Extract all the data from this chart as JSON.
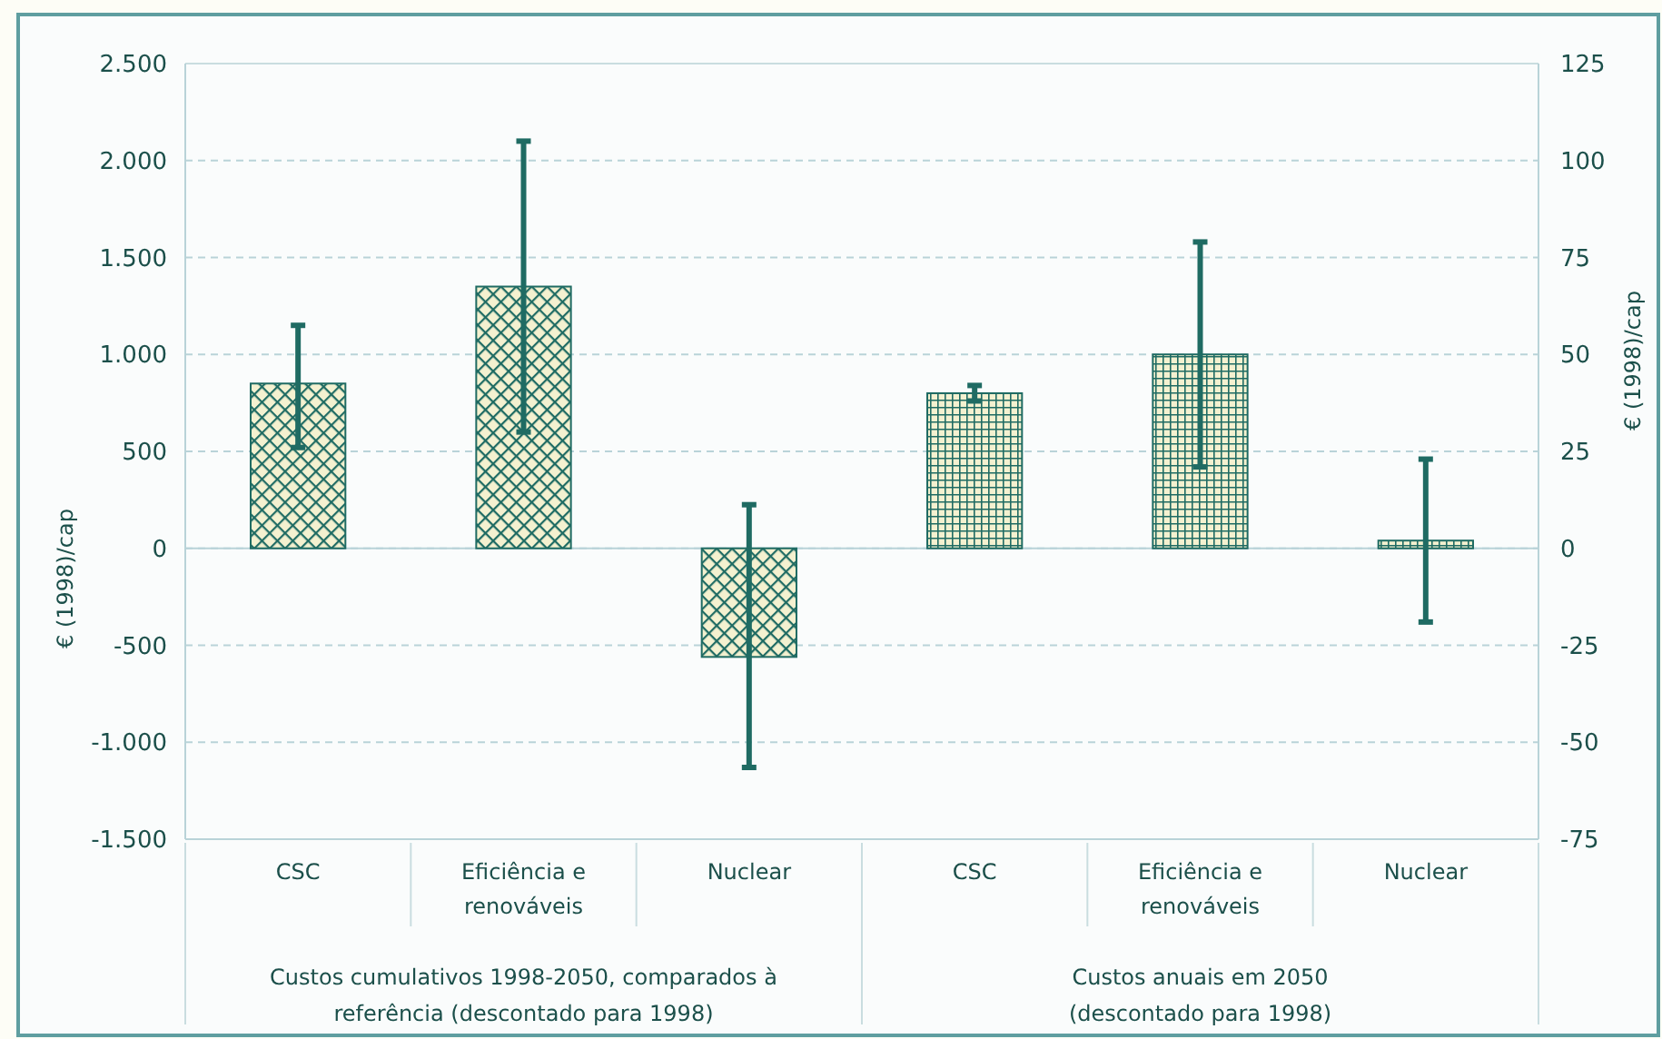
{
  "chart_data": {
    "type": "bar",
    "categories": [
      "CSC",
      "Eficiência e renováveis",
      "Nuclear",
      "CSC",
      "Eficiência e renováveis",
      "Nuclear"
    ],
    "series": [
      {
        "color": "#1f6b63",
        "values": [
          850,
          1350,
          -560,
          null,
          null,
          null
        ],
        "errors": [
          [
            520,
            1150
          ],
          [
            600,
            2100
          ],
          [
            -1130,
            225
          ],
          null,
          null,
          null
        ]
      },
      {
        "color": "#1f6b63",
        "axis": "y2",
        "values": [
          null,
          null,
          null,
          40,
          50,
          2
        ],
        "errors": [
          null,
          null,
          null,
          [
            38,
            42
          ],
          [
            21,
            79
          ],
          [
            -19,
            23
          ]
        ]
      }
    ],
    "ylabel": "€ (1998)/cap",
    "y2label": "€ (1998)/cap",
    "ylim": [
      -1500,
      2500
    ],
    "yticks": [
      {
        "value": -1500,
        "label": "-1.500"
      },
      {
        "value": -1000,
        "label": "-1.000"
      },
      -500,
      0,
      500,
      {
        "value": 1000,
        "label": "1.000"
      },
      {
        "value": 1500,
        "label": "1.500"
      },
      {
        "value": 2000,
        "label": "2.000"
      },
      {
        "value": 2500,
        "label": "2.500"
      }
    ],
    "y2lim": [
      -75,
      125
    ],
    "y2ticks": [
      -75,
      -50,
      -25,
      0,
      25,
      50,
      75,
      100,
      125
    ],
    "grid": "y",
    "annotations": [
      "Custos cumulativos 1998-2050, comparados à referência (descontado para 1998)",
      "Custos anuais em 2050 (descontado para 1998)"
    ]
  }
}
